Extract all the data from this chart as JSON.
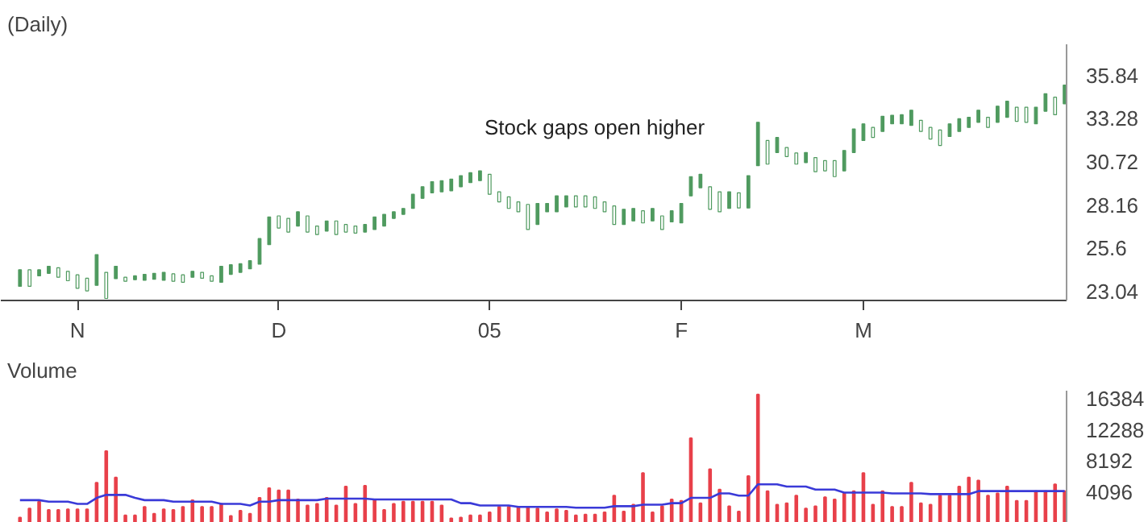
{
  "chart_data": [
    {
      "type": "candlestick",
      "title": "(Daily)",
      "color": "#4f9a5f",
      "categories": [
        null,
        null,
        null,
        null,
        null,
        null,
        "N",
        null,
        null,
        null,
        null,
        null,
        null,
        null,
        null,
        null,
        null,
        null,
        null,
        null,
        null,
        null,
        null,
        null,
        null,
        null,
        null,
        "D",
        null,
        null,
        null,
        null,
        null,
        null,
        null,
        null,
        null,
        null,
        null,
        null,
        null,
        null,
        null,
        null,
        null,
        null,
        null,
        null,
        null,
        "05",
        null,
        null,
        null,
        null,
        null,
        null,
        null,
        null,
        null,
        null,
        null,
        null,
        null,
        null,
        null,
        null,
        null,
        null,
        null,
        "F",
        null,
        null,
        null,
        null,
        null,
        null,
        null,
        null,
        null,
        null,
        null,
        null,
        null,
        null,
        null,
        null,
        null,
        null,
        "M",
        null,
        null,
        null,
        null,
        null,
        null,
        null,
        null,
        null,
        null,
        null,
        null,
        null,
        null,
        null,
        null,
        null,
        null,
        null,
        null,
        null
      ],
      "ohlc": [
        [
          23.34,
          24.32,
          23.34,
          24.32
        ],
        [
          24.32,
          24.32,
          23.34,
          23.34
        ],
        [
          23.96,
          24.32,
          23.96,
          24.32
        ],
        [
          24.11,
          24.53,
          24.11,
          24.53
        ],
        [
          24.44,
          24.44,
          23.88,
          23.88
        ],
        [
          24.23,
          24.23,
          23.67,
          23.67
        ],
        [
          24.02,
          24.02,
          23.22,
          23.22
        ],
        [
          23.82,
          23.82,
          23.07,
          23.07
        ],
        [
          23.4,
          25.22,
          23.4,
          25.22
        ],
        [
          24.17,
          24.17,
          22.62,
          22.62
        ],
        [
          23.79,
          24.53,
          23.79,
          24.53
        ],
        [
          23.88,
          23.88,
          23.64,
          23.64
        ],
        [
          23.73,
          23.96,
          23.73,
          23.96
        ],
        [
          23.7,
          24.05,
          23.7,
          24.05
        ],
        [
          23.76,
          24.11,
          23.76,
          24.11
        ],
        [
          23.7,
          24.17,
          23.7,
          24.17
        ],
        [
          24.08,
          24.08,
          23.64,
          23.64
        ],
        [
          24.02,
          24.02,
          23.58,
          23.58
        ],
        [
          23.88,
          24.23,
          23.88,
          24.23
        ],
        [
          24.17,
          24.17,
          23.82,
          23.82
        ],
        [
          23.96,
          23.96,
          23.64,
          23.64
        ],
        [
          23.58,
          24.53,
          23.58,
          24.53
        ],
        [
          24.05,
          24.62,
          24.05,
          24.62
        ],
        [
          24.17,
          24.68,
          24.17,
          24.68
        ],
        [
          24.38,
          24.86,
          24.38,
          24.86
        ],
        [
          24.65,
          26.17,
          24.65,
          26.17
        ],
        [
          25.81,
          27.46,
          25.81,
          27.46
        ],
        [
          27.52,
          27.52,
          26.8,
          26.8
        ],
        [
          27.37,
          27.37,
          26.56,
          26.56
        ],
        [
          26.92,
          27.76,
          26.92,
          27.76
        ],
        [
          27.52,
          27.52,
          26.56,
          26.56
        ],
        [
          26.92,
          26.92,
          26.41,
          26.41
        ],
        [
          26.62,
          27.22,
          26.62,
          27.22
        ],
        [
          27.22,
          27.22,
          26.41,
          26.41
        ],
        [
          27.01,
          27.01,
          26.56,
          26.56
        ],
        [
          26.92,
          26.92,
          26.5,
          26.5
        ],
        [
          26.56,
          27.01,
          26.56,
          27.01
        ],
        [
          26.71,
          27.46,
          26.71,
          27.46
        ],
        [
          26.92,
          27.61,
          26.92,
          27.61
        ],
        [
          27.37,
          27.76,
          27.37,
          27.76
        ],
        [
          27.61,
          27.96,
          27.61,
          27.96
        ],
        [
          27.96,
          28.8,
          27.96,
          28.8
        ],
        [
          28.56,
          29.25,
          28.56,
          29.25
        ],
        [
          28.89,
          29.55,
          28.89,
          29.55
        ],
        [
          28.95,
          29.61,
          28.95,
          29.61
        ],
        [
          29.01,
          29.7,
          29.01,
          29.7
        ],
        [
          29.25,
          29.91,
          29.25,
          29.91
        ],
        [
          29.49,
          30.08,
          29.49,
          30.08
        ],
        [
          29.61,
          30.19,
          29.61,
          30.19
        ],
        [
          29.99,
          29.99,
          28.8,
          28.8
        ],
        [
          28.95,
          28.95,
          28.35,
          28.35
        ],
        [
          28.65,
          28.65,
          27.96,
          27.96
        ],
        [
          28.35,
          28.35,
          27.76,
          27.76
        ],
        [
          28.2,
          28.2,
          26.71,
          26.71
        ],
        [
          27.01,
          28.26,
          27.01,
          28.26
        ],
        [
          27.76,
          28.26,
          27.76,
          28.26
        ],
        [
          27.76,
          28.71,
          27.76,
          28.71
        ],
        [
          28.05,
          28.71,
          28.05,
          28.71
        ],
        [
          28.71,
          28.71,
          28.05,
          28.05
        ],
        [
          28.71,
          28.71,
          28.05,
          28.05
        ],
        [
          28.65,
          28.65,
          27.96,
          27.96
        ],
        [
          28.35,
          28.35,
          27.76,
          27.76
        ],
        [
          28.11,
          28.11,
          27.01,
          27.01
        ],
        [
          27.01,
          27.91,
          27.01,
          27.91
        ],
        [
          27.22,
          27.96,
          27.22,
          27.96
        ],
        [
          27.82,
          27.82,
          27.1,
          27.1
        ],
        [
          27.22,
          27.96,
          27.22,
          27.96
        ],
        [
          27.52,
          27.52,
          26.71,
          26.71
        ],
        [
          27.16,
          27.82,
          27.16,
          27.82
        ],
        [
          27.1,
          28.26,
          27.1,
          28.26
        ],
        [
          28.71,
          29.85,
          28.71,
          29.85
        ],
        [
          29.19,
          29.99,
          29.19,
          29.99
        ],
        [
          29.25,
          29.25,
          27.91,
          27.91
        ],
        [
          28.95,
          28.95,
          27.76,
          27.76
        ],
        [
          27.96,
          28.95,
          27.96,
          28.95
        ],
        [
          28.89,
          28.89,
          27.99,
          27.99
        ],
        [
          27.99,
          29.91,
          27.99,
          29.91
        ],
        [
          30.5,
          33.07,
          30.5,
          33.07
        ],
        [
          31.99,
          31.99,
          30.59,
          30.59
        ],
        [
          31.28,
          32.17,
          31.28,
          32.17
        ],
        [
          31.58,
          31.58,
          31.04,
          31.04
        ],
        [
          31.25,
          31.25,
          30.59,
          30.59
        ],
        [
          30.68,
          31.28,
          30.68,
          31.28
        ],
        [
          30.98,
          30.98,
          30.14,
          30.14
        ],
        [
          30.8,
          30.8,
          30.19,
          30.19
        ],
        [
          30.8,
          30.8,
          29.85,
          29.85
        ],
        [
          30.19,
          31.4,
          30.19,
          31.4
        ],
        [
          31.28,
          32.68,
          31.28,
          32.68
        ],
        [
          31.99,
          32.98,
          31.99,
          32.98
        ],
        [
          32.77,
          32.77,
          32.17,
          32.17
        ],
        [
          32.53,
          33.43,
          32.53,
          33.43
        ],
        [
          32.98,
          33.49,
          32.98,
          33.49
        ],
        [
          32.98,
          33.52,
          32.98,
          33.52
        ],
        [
          32.89,
          33.79,
          32.89,
          33.79
        ],
        [
          33.19,
          33.19,
          32.53,
          32.53
        ],
        [
          32.77,
          32.77,
          32.08,
          32.08
        ],
        [
          32.62,
          32.62,
          31.7,
          31.7
        ],
        [
          32.23,
          32.98,
          32.23,
          32.98
        ],
        [
          32.53,
          33.28,
          32.53,
          33.28
        ],
        [
          32.77,
          33.37,
          32.77,
          33.37
        ],
        [
          33.07,
          33.79,
          33.07,
          33.79
        ],
        [
          33.37,
          33.37,
          32.77,
          32.77
        ],
        [
          33.07,
          34.03,
          33.07,
          34.03
        ],
        [
          33.37,
          34.32,
          33.37,
          34.32
        ],
        [
          33.97,
          33.97,
          33.13,
          33.13
        ],
        [
          33.97,
          33.97,
          33.07,
          33.07
        ],
        [
          32.98,
          33.97,
          32.98,
          33.97
        ],
        [
          33.73,
          34.77,
          33.73,
          34.77
        ],
        [
          34.56,
          34.56,
          33.52,
          33.52
        ],
        [
          34.17,
          35.28,
          34.17,
          35.28
        ]
      ],
      "ylim": [
        22.5,
        37.7
      ],
      "yticks": [
        23.04,
        25.6,
        28.16,
        30.72,
        33.28,
        35.84
      ],
      "annotations": [
        "Stock gaps open higher"
      ]
    },
    {
      "type": "bar",
      "title": "Volume",
      "tick_labels": "y",
      "categories": [
        null,
        null,
        null,
        null,
        null,
        null,
        null,
        null,
        null,
        null,
        null,
        null,
        null,
        null,
        null,
        null,
        null,
        null,
        null,
        null,
        null,
        null,
        null,
        null,
        null,
        null,
        null,
        null,
        null,
        null,
        null,
        null,
        null,
        null,
        null,
        null,
        null,
        null,
        null,
        null,
        null,
        null,
        null,
        null,
        null,
        null,
        null,
        null,
        null,
        null,
        null,
        null,
        null,
        null,
        null,
        null,
        null,
        null,
        null,
        null,
        null,
        null,
        null,
        null,
        null,
        null,
        null,
        null,
        null,
        null,
        null,
        null,
        null,
        null,
        null,
        null,
        null,
        null,
        null,
        null,
        null,
        null,
        null,
        null,
        null,
        null,
        null,
        null,
        null,
        null,
        null,
        null,
        null,
        null,
        null,
        null,
        null,
        null,
        null,
        null,
        null,
        null,
        null,
        null,
        null,
        null,
        null,
        null,
        null,
        null
      ],
      "series": [
        {
          "type": "bar",
          "color": "#e8404a",
          "values": [
            700,
            1900,
            2800,
            1700,
            1700,
            1800,
            1800,
            1800,
            5300,
            9500,
            6000,
            1000,
            1000,
            2100,
            1200,
            1800,
            1700,
            2100,
            3000,
            2100,
            2100,
            2500,
            900,
            1600,
            1200,
            3300,
            4600,
            4300,
            4300,
            3100,
            2300,
            2500,
            3300,
            2300,
            4800,
            2500,
            4900,
            3000,
            1700,
            2500,
            2800,
            2800,
            2800,
            2800,
            2300,
            600,
            700,
            1000,
            1000,
            1400,
            2100,
            2100,
            2100,
            2100,
            1900,
            1400,
            1800,
            1600,
            1000,
            1100,
            1100,
            1400,
            3600,
            1500,
            2400,
            6600,
            1400,
            2200,
            3100,
            2900,
            11200,
            2600,
            7100,
            4400,
            2200,
            1500,
            6200,
            17000,
            4200,
            2400,
            2600,
            3600,
            1900,
            2200,
            3400,
            3100,
            3900,
            4200,
            6600,
            2400,
            4200,
            2100,
            2100,
            5300,
            2600,
            2400,
            3600,
            3600,
            4800,
            6000,
            5600,
            3600,
            3900,
            4800,
            2900,
            2900,
            4200,
            4200,
            5100,
            4200
          ]
        },
        {
          "type": "line",
          "color": "#3a3ad8",
          "values": [
            3000,
            3000,
            3000,
            2800,
            2800,
            2800,
            2500,
            2500,
            3300,
            3700,
            3700,
            3700,
            3300,
            3000,
            3000,
            3000,
            2800,
            2800,
            2800,
            2800,
            2800,
            2500,
            2500,
            2500,
            2300,
            2800,
            2800,
            3000,
            3000,
            3000,
            3000,
            3000,
            3200,
            3200,
            3200,
            3200,
            3200,
            3100,
            3100,
            3100,
            3100,
            3100,
            3100,
            3100,
            3100,
            3100,
            2600,
            2600,
            2300,
            2300,
            2300,
            2300,
            2100,
            2100,
            2100,
            2100,
            2100,
            2100,
            2000,
            2000,
            2000,
            2000,
            2200,
            2200,
            2200,
            2400,
            2400,
            2400,
            2600,
            2600,
            3300,
            3300,
            3300,
            3900,
            3900,
            3600,
            3600,
            5100,
            5100,
            5100,
            4800,
            4800,
            4800,
            4400,
            4400,
            4400,
            4000,
            4000,
            4000,
            4000,
            4000,
            3900,
            3900,
            3900,
            3900,
            3800,
            3800,
            3800,
            3800,
            3800,
            4200,
            4200,
            4200,
            4200,
            4200,
            4200,
            4200,
            4200,
            4200,
            4200
          ]
        }
      ],
      "ylim": [
        0,
        17500
      ],
      "yticks": [
        4096,
        8192,
        12288,
        16384
      ]
    }
  ]
}
